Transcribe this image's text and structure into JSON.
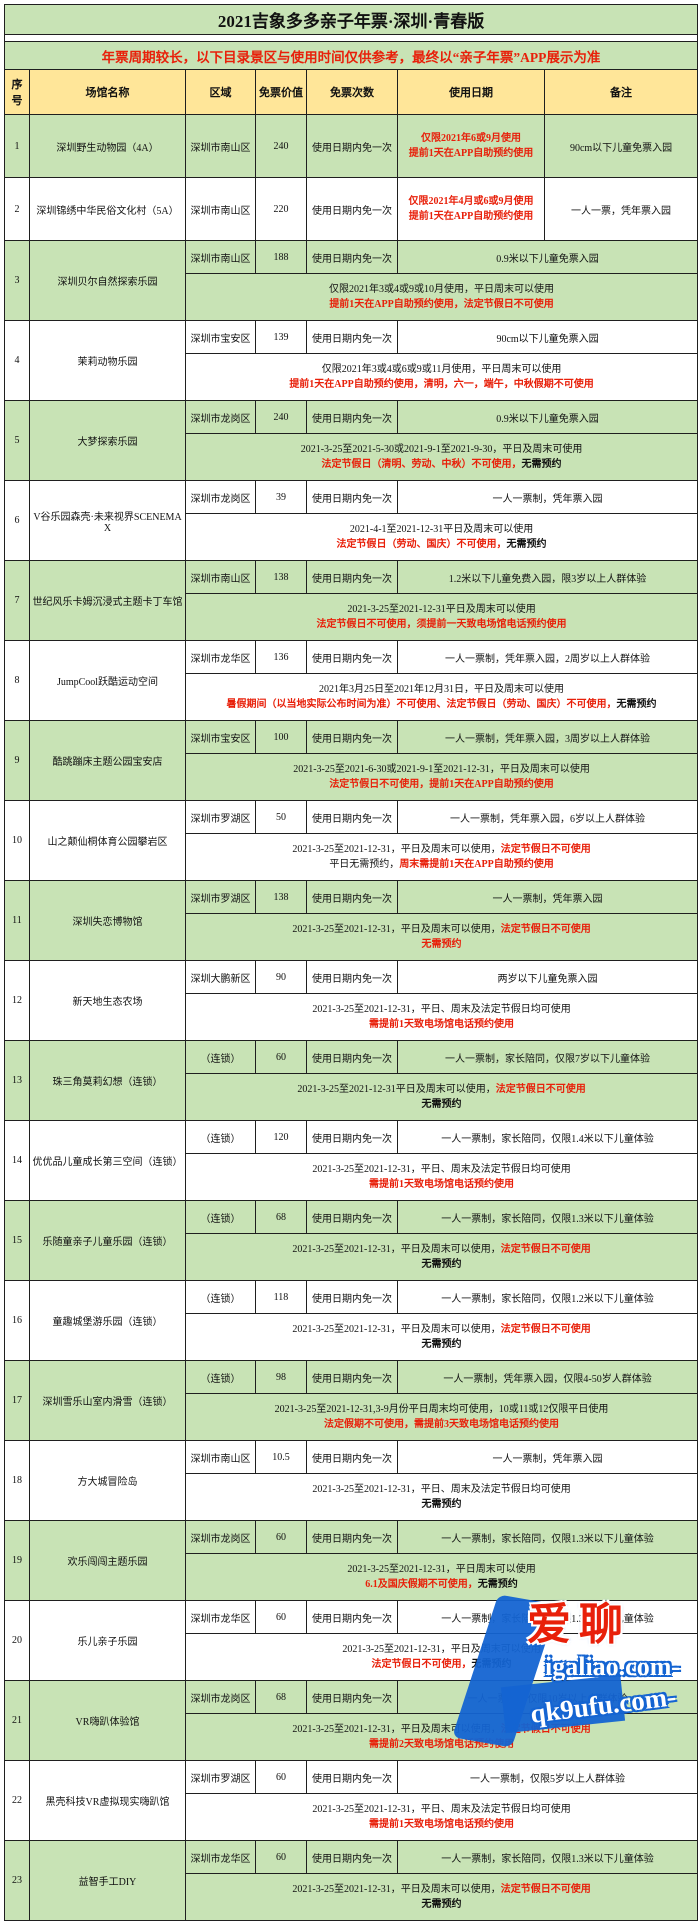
{
  "title": "2021吉象多多亲子年票·深圳·青春版",
  "notice": "年票周期较长，以下目录景区与使用时间仅供参考，最终以“亲子年票”APP展示为准",
  "columns": [
    "序号",
    "场馆名称",
    "区域",
    "免票价值",
    "免票次数",
    "使用日期",
    "备注"
  ],
  "colors": {
    "row_green": "#c8e3b5",
    "header_yellow": "#ffe699",
    "alert_red": "#e8200a",
    "border": "#1f1f1f",
    "watermark_blue": "#1464d2"
  },
  "rows": [
    {
      "no": "1",
      "name": "深圳野生动物园（4A）",
      "type": "simple",
      "shade": "g",
      "region": "深圳市南山区",
      "value": "240",
      "times": "使用日期内免一次",
      "date_lines": [
        [
          {
            "t": "仅限2021年6或9月使用",
            "c": "red"
          }
        ],
        [
          {
            "t": "提前1天在APP自助预约使用",
            "c": "red"
          }
        ]
      ],
      "note": "90cm以下儿童免票入园"
    },
    {
      "no": "2",
      "name": "深圳锦绣中华民俗文化村（5A）",
      "type": "simple",
      "shade": "w",
      "region": "深圳市南山区",
      "value": "220",
      "times": "使用日期内免一次",
      "date_lines": [
        [
          {
            "t": "仅限2021年4月或6或9月使用",
            "c": "red"
          }
        ],
        [
          {
            "t": "提前1天在APP自助预约使用",
            "c": "red"
          }
        ]
      ],
      "note": "一人一票，凭年票入园"
    },
    {
      "no": "3",
      "name": "深圳贝尔自然探索乐园",
      "type": "split",
      "shade": "g",
      "region": "深圳市南山区",
      "value": "188",
      "times": "使用日期内免一次",
      "note": "0.9米以下儿童免票入园",
      "date_lines": [
        [
          {
            "t": "仅限2021年3或4或9或10月使用，平日周末可以使用",
            "c": "bk"
          }
        ],
        [
          {
            "t": "提前1天在APP自助预约使用，法定节假日不可使用",
            "c": "red"
          }
        ]
      ]
    },
    {
      "no": "4",
      "name": "茉莉动物乐园",
      "type": "split",
      "shade": "w",
      "region": "深圳市宝安区",
      "value": "139",
      "times": "使用日期内免一次",
      "note": "90cm以下儿童免票入园",
      "date_lines": [
        [
          {
            "t": "仅限2021年3或4或6或9或11月使用，平日周末可以使用",
            "c": "bk"
          }
        ],
        [
          {
            "t": "提前1天在APP自助预约使用，清明，六一，端午，中秋假期不可使用",
            "c": "red"
          }
        ]
      ]
    },
    {
      "no": "5",
      "name": "大梦探索乐园",
      "type": "split",
      "shade": "g",
      "region": "深圳市龙岗区",
      "value": "240",
      "times": "使用日期内免一次",
      "note": "0.9米以下儿童免票入园",
      "date_lines": [
        [
          {
            "t": "2021-3-25至2021-5-30或2021-9-1至2021-9-30，平日及周末可使用",
            "c": "bk"
          }
        ],
        [
          {
            "t": "法定节假日（清明、劳动、中秋）不可使用，",
            "c": "red"
          },
          {
            "t": "无需预约",
            "c": "bk",
            "b": true
          }
        ]
      ]
    },
    {
      "no": "6",
      "name": "V谷乐园森壳·未来视界SCENEMAX",
      "type": "split",
      "shade": "w",
      "region": "深圳市龙岗区",
      "value": "39",
      "times": "使用日期内免一次",
      "note": "一人一票制，凭年票入园",
      "date_lines": [
        [
          {
            "t": "2021-4-1至2021-12-31平日及周末可以使用",
            "c": "bk"
          }
        ],
        [
          {
            "t": "法定节假日（劳动、国庆）不可使用，",
            "c": "red"
          },
          {
            "t": "无需预约",
            "c": "bk",
            "b": true
          }
        ]
      ]
    },
    {
      "no": "7",
      "name": "世纪风乐卡姆沉浸式主题卡丁车馆",
      "type": "split",
      "shade": "g",
      "region": "深圳市南山区",
      "value": "138",
      "times": "使用日期内免一次",
      "note": "1.2米以下儿童免费入园，限3岁以上人群体验",
      "date_lines": [
        [
          {
            "t": "2021-3-25至2021-12-31平日及周末可以使用",
            "c": "bk"
          }
        ],
        [
          {
            "t": "法定节假日不可使用，须提前一天致电场馆电话预约使用",
            "c": "red"
          }
        ]
      ]
    },
    {
      "no": "8",
      "name": "JumpCool跃酷运动空间",
      "type": "split",
      "shade": "w",
      "region": "深圳市龙华区",
      "value": "136",
      "times": "使用日期内免一次",
      "note": "一人一票制，凭年票入园，2周岁以上人群体验",
      "date_lines": [
        [
          {
            "t": "2021年3月25日至2021年12月31日，平日及周末可以使用",
            "c": "bk"
          }
        ],
        [
          {
            "t": "暑假期间（以当地实际公布时间为准）不可使用、法定节假日（劳动、国庆）不可使用，",
            "c": "red"
          },
          {
            "t": "无需预约",
            "c": "bk",
            "b": true
          }
        ]
      ]
    },
    {
      "no": "9",
      "name": "酷跳蹦床主题公园宝安店",
      "type": "split",
      "shade": "g",
      "region": "深圳市宝安区",
      "value": "100",
      "times": "使用日期内免一次",
      "note": "一人一票制，凭年票入园，3周岁以上人群体验",
      "date_lines": [
        [
          {
            "t": "2021-3-25至2021-6-30或2021-9-1至2021-12-31，平日及周末可以使用",
            "c": "bk"
          }
        ],
        [
          {
            "t": "法定节假日不可使用，提前1天在APP自助预约使用",
            "c": "red"
          }
        ]
      ]
    },
    {
      "no": "10",
      "name": "山之颠仙桐体育公园攀岩区",
      "type": "split",
      "shade": "w",
      "region": "深圳市罗湖区",
      "value": "50",
      "times": "使用日期内免一次",
      "note": "一人一票制，凭年票入园，6岁以上人群体验",
      "date_lines": [
        [
          {
            "t": "2021-3-25至2021-12-31，平日及周末可以使用，",
            "c": "bk"
          },
          {
            "t": "法定节假日不可使用",
            "c": "red"
          }
        ],
        [
          {
            "t": "平日无需预约，",
            "c": "bk"
          },
          {
            "t": "周末需提前1天在APP自助预约使用",
            "c": "red"
          }
        ]
      ]
    },
    {
      "no": "11",
      "name": "深圳失恋博物馆",
      "type": "split",
      "shade": "g",
      "region": "深圳市罗湖区",
      "value": "138",
      "times": "使用日期内免一次",
      "note": "一人一票制，凭年票入园",
      "date_lines": [
        [
          {
            "t": "2021-3-25至2021-12-31，平日及周末可以使用，",
            "c": "bk"
          },
          {
            "t": "法定节假日不可使用",
            "c": "red"
          }
        ],
        [
          {
            "t": "无需预约",
            "c": "red"
          }
        ]
      ]
    },
    {
      "no": "12",
      "name": "新天地生态农场",
      "type": "split",
      "shade": "w",
      "region": "深圳大鹏新区",
      "value": "90",
      "times": "使用日期内免一次",
      "note": "两岁以下儿童免票入园",
      "date_lines": [
        [
          {
            "t": "2021-3-25至2021-12-31，平日、周末及法定节假日均可使用",
            "c": "bk"
          }
        ],
        [
          {
            "t": "需提前1天致电场馆电话预约使用",
            "c": "red"
          }
        ]
      ]
    },
    {
      "no": "13",
      "name": "珠三角莫莉幻想（连锁）",
      "type": "split",
      "shade": "g",
      "region": "（连锁）",
      "value": "60",
      "times": "使用日期内免一次",
      "note": "一人一票制，家长陪同，仅限7岁以下儿童体验",
      "date_lines": [
        [
          {
            "t": "2021-3-25至2021-12-31平日及周末可以使用，",
            "c": "bk"
          },
          {
            "t": "法定节假日不可使用",
            "c": "red"
          }
        ],
        [
          {
            "t": "无需预约",
            "c": "bk",
            "b": true
          }
        ]
      ]
    },
    {
      "no": "14",
      "name": "优优品儿童成长第三空间（连锁）",
      "type": "split",
      "shade": "w",
      "region": "（连锁）",
      "value": "120",
      "times": "使用日期内免一次",
      "note": "一人一票制，家长陪同，仅限1.4米以下儿童体验",
      "date_lines": [
        [
          {
            "t": "2021-3-25至2021-12-31，平日、周末及法定节假日均可使用",
            "c": "bk"
          }
        ],
        [
          {
            "t": "需提前1天致电场馆电话预约使用",
            "c": "red"
          }
        ]
      ]
    },
    {
      "no": "15",
      "name": "乐随童亲子儿童乐园（连锁）",
      "type": "split",
      "shade": "g",
      "region": "（连锁）",
      "value": "68",
      "times": "使用日期内免一次",
      "note": "一人一票制，家长陪同，仅限1.3米以下儿童体验",
      "date_lines": [
        [
          {
            "t": "2021-3-25至2021-12-31，平日及周末可以使用，",
            "c": "bk"
          },
          {
            "t": "法定节假日不可使用",
            "c": "red"
          }
        ],
        [
          {
            "t": "无需预约",
            "c": "bk",
            "b": true
          }
        ]
      ]
    },
    {
      "no": "16",
      "name": "童趣城堡游乐园（连锁）",
      "type": "split",
      "shade": "w",
      "region": "（连锁）",
      "value": "118",
      "times": "使用日期内免一次",
      "note": "一人一票制，家长陪同，仅限1.2米以下儿童体验",
      "date_lines": [
        [
          {
            "t": "2021-3-25至2021-12-31，平日及周末可以使用，",
            "c": "bk"
          },
          {
            "t": "法定节假日不可使用",
            "c": "red"
          }
        ],
        [
          {
            "t": "无需预约",
            "c": "bk",
            "b": true
          }
        ]
      ]
    },
    {
      "no": "17",
      "name": "深圳雪乐山室内滑雪（连锁）",
      "type": "split",
      "shade": "g",
      "region": "（连锁）",
      "value": "98",
      "times": "使用日期内免一次",
      "note": "一人一票制，凭年票入园，仅限4-50岁人群体验",
      "date_lines": [
        [
          {
            "t": "2021-3-25至2021-12-31,3-9月份平日周末均可使用，10或11或12仅限平日使用",
            "c": "bk"
          }
        ],
        [
          {
            "t": "法定假期不可使用，需提前3天致电场馆电话预约使用",
            "c": "red"
          }
        ]
      ]
    },
    {
      "no": "18",
      "name": "方大城冒险岛",
      "type": "split",
      "shade": "w",
      "region": "深圳市南山区",
      "value": "10.5",
      "times": "使用日期内免一次",
      "note": "一人一票制，凭年票入园",
      "date_lines": [
        [
          {
            "t": "2021-3-25至2021-12-31，平日、周末及法定节假日均可使用",
            "c": "bk"
          }
        ],
        [
          {
            "t": "无需预约",
            "c": "bk",
            "b": true
          }
        ]
      ]
    },
    {
      "no": "19",
      "name": "欢乐闯闯主题乐园",
      "type": "split",
      "shade": "g",
      "region": "深圳市龙岗区",
      "value": "60",
      "times": "使用日期内免一次",
      "note": "一人一票制，家长陪同，仅限1.3米以下儿童体验",
      "date_lines": [
        [
          {
            "t": "2021-3-25至2021-12-31，平日周末可以使用",
            "c": "bk"
          }
        ],
        [
          {
            "t": "6.1及国庆假期不可使用，",
            "c": "red"
          },
          {
            "t": "无需预约",
            "c": "bk",
            "b": true
          }
        ]
      ]
    },
    {
      "no": "20",
      "name": "乐儿亲子乐园",
      "type": "split",
      "shade": "w",
      "region": "深圳市龙华区",
      "value": "60",
      "times": "使用日期内免一次",
      "note": "一人一票制，家长陪同，仅限1.3米以下儿童体验",
      "date_lines": [
        [
          {
            "t": "2021-3-25至2021-12-31，平日及周末可以使用",
            "c": "bk"
          }
        ],
        [
          {
            "t": "法定节假日不可使用，",
            "c": "red"
          },
          {
            "t": "无需预约",
            "c": "bk",
            "b": true
          }
        ]
      ]
    },
    {
      "no": "21",
      "name": "VR嗨趴体验馆",
      "type": "split",
      "shade": "g",
      "region": "深圳市龙岗区",
      "value": "68",
      "times": "使用日期内免一次",
      "note": "一人一票制，仅限10岁以上人群体验",
      "date_lines": [
        [
          {
            "t": "2021-3-25至2021-12-31，平日及周末可以使用，",
            "c": "bk"
          },
          {
            "t": "法定节假日不可使用",
            "c": "red"
          }
        ],
        [
          {
            "t": "需提前2天致电场馆电话预约使用",
            "c": "red"
          }
        ]
      ]
    },
    {
      "no": "22",
      "name": "黑壳科技VR虚拟现实嗨趴馆",
      "type": "split",
      "shade": "w",
      "region": "深圳市罗湖区",
      "value": "60",
      "times": "使用日期内免一次",
      "note": "一人一票制，仅限5岁以上人群体验",
      "date_lines": [
        [
          {
            "t": "2021-3-25至2021-12-31，平日、周末及法定节假日均可使用",
            "c": "bk"
          }
        ],
        [
          {
            "t": "需提前1天致电场馆电话预约使用",
            "c": "red"
          }
        ]
      ]
    },
    {
      "no": "23",
      "name": "益智手工DIY",
      "type": "split",
      "shade": "g",
      "region": "深圳市龙华区",
      "value": "60",
      "times": "使用日期内免一次",
      "note": "一人一票制，家长陪同，仅限1.3米以下儿童体验",
      "date_lines": [
        [
          {
            "t": "2021-3-25至2021-12-31，平日及周末可以使用，",
            "c": "bk"
          },
          {
            "t": "法定节假日不可使用",
            "c": "red"
          }
        ],
        [
          {
            "t": "无需预约",
            "c": "bk",
            "b": true
          }
        ]
      ]
    }
  ],
  "watermark": {
    "line1": "爱聊",
    "line2": "igaliao.com-",
    "line3": "qk9ufu.com-"
  }
}
